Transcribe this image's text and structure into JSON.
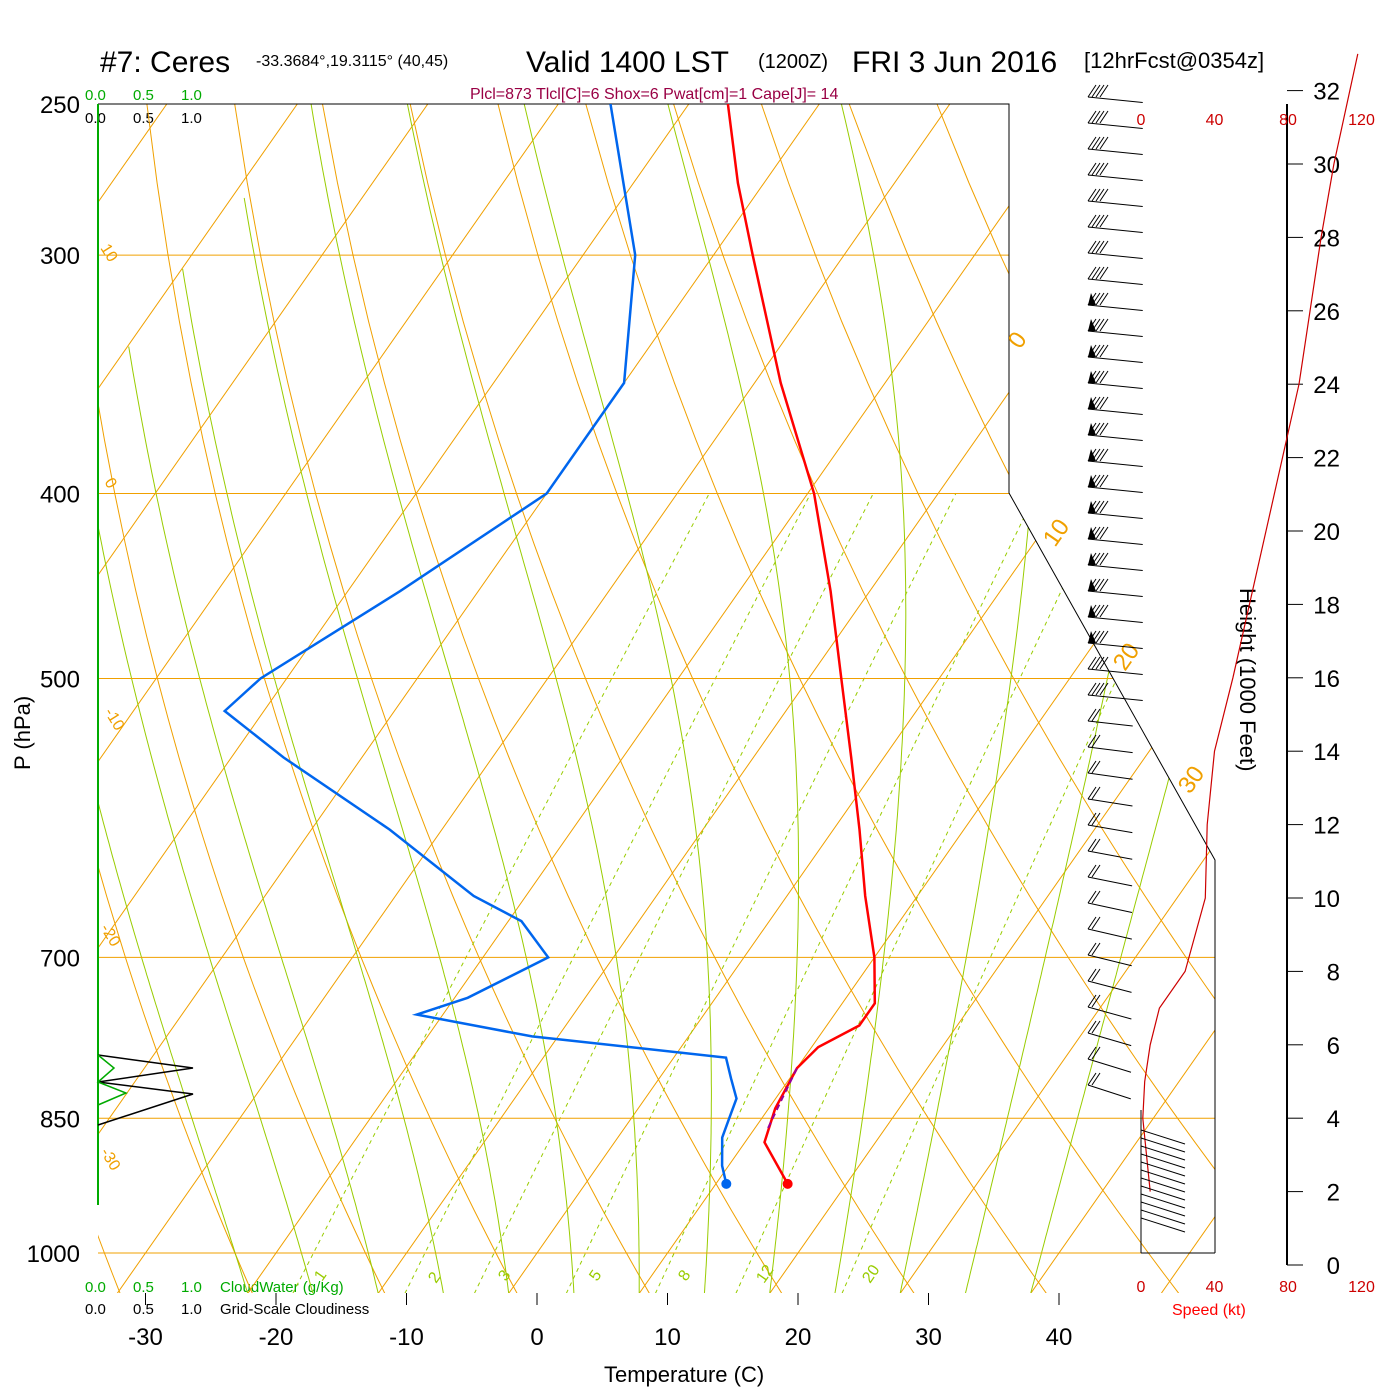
{
  "header": {
    "station": "#7: Ceres",
    "coords": "-33.3684°,19.3115° (40,45)",
    "valid": "Valid 1400 LST",
    "utc": "(1200Z)",
    "date": "FRI 3 Jun 2016",
    "forecast": "[12hrFcst@0354z]",
    "indices": "Plcl=873 Tlcl[C]=6 Shox=6 Pwat[cm]=1 Cape[J]= 14"
  },
  "colors": {
    "temperature": "#ff0000",
    "dewpoint": "#0066ee",
    "isotherm_isobar": "#f0a000",
    "adiabat": "#99cc00",
    "cloud_water": "#00aa00",
    "wind_speed": "#cc0000",
    "indices_text": "#990044"
  },
  "chart_data": {
    "type": "skew-t",
    "xlabel": "Temperature (C)",
    "ylabel": "P (hPa)",
    "right_axis_label": "Height (1000 Feet)",
    "x_ticks": [
      "-30",
      "-20",
      "-10",
      "0",
      "10",
      "20",
      "30",
      "40"
    ],
    "pressure_ticks": [
      "250",
      "300",
      "400",
      "500",
      "700",
      "850",
      "1000"
    ],
    "pressure_levels": [
      250,
      300,
      400,
      500,
      700,
      850,
      1000
    ],
    "height_ticks": [
      "0",
      "2",
      "4",
      "6",
      "8",
      "10",
      "12",
      "14",
      "16",
      "18",
      "20",
      "22",
      "24",
      "26",
      "28",
      "30",
      "32"
    ],
    "height_values": [
      0,
      2,
      4,
      6,
      8,
      10,
      12,
      14,
      16,
      18,
      20,
      22,
      24,
      26,
      28,
      30,
      32
    ],
    "isotherm_label_values": [
      "10",
      "0",
      "-10",
      "-20",
      "-30"
    ],
    "isotherm_right_labels": [
      "0",
      "10",
      "20",
      "30"
    ],
    "mixing_ratio_labels": [
      "1",
      "2",
      "3",
      "5",
      "8",
      "12",
      "20"
    ],
    "cloud_scale_top": [
      "0.0",
      "0.5",
      "1.0"
    ],
    "cloud_scale_bottom": [
      "0.0",
      "0.5",
      "1.0"
    ],
    "cloud_water_label": "CloudWater (g/Kg)",
    "cloudiness_label": "Grid-Scale Cloudiness",
    "speed_ticks": [
      "0",
      "40",
      "80",
      "120"
    ],
    "speed_label": "Speed (kt)",
    "temperature": [
      {
        "p": 920,
        "t": 15.5
      },
      {
        "p": 875,
        "t": 11.5
      },
      {
        "p": 840,
        "t": 10.5
      },
      {
        "p": 800,
        "t": 10.0
      },
      {
        "p": 780,
        "t": 10.5
      },
      {
        "p": 760,
        "t": 12.5
      },
      {
        "p": 740,
        "t": 12.5
      },
      {
        "p": 700,
        "t": 10.0
      },
      {
        "p": 650,
        "t": 6.0
      },
      {
        "p": 600,
        "t": 2.0
      },
      {
        "p": 550,
        "t": -2.5
      },
      {
        "p": 500,
        "t": -7.5
      },
      {
        "p": 450,
        "t": -13.0
      },
      {
        "p": 400,
        "t": -19.5
      },
      {
        "p": 350,
        "t": -28.0
      },
      {
        "p": 300,
        "t": -37.0
      },
      {
        "p": 275,
        "t": -42.0
      },
      {
        "p": 250,
        "t": -47.0
      }
    ],
    "dewpoint": [
      {
        "p": 920,
        "t": 10.8
      },
      {
        "p": 900,
        "t": 9.5
      },
      {
        "p": 870,
        "t": 8.0
      },
      {
        "p": 850,
        "t": 7.5
      },
      {
        "p": 830,
        "t": 7.0
      },
      {
        "p": 810,
        "t": 5.5
      },
      {
        "p": 790,
        "t": 4.0
      },
      {
        "p": 770,
        "t": -12.0
      },
      {
        "p": 750,
        "t": -22.0
      },
      {
        "p": 735,
        "t": -19.0
      },
      {
        "p": 700,
        "t": -15.0
      },
      {
        "p": 670,
        "t": -19.0
      },
      {
        "p": 650,
        "t": -24.0
      },
      {
        "p": 600,
        "t": -34.0
      },
      {
        "p": 550,
        "t": -46.0
      },
      {
        "p": 520,
        "t": -53.0
      },
      {
        "p": 500,
        "t": -52.0
      },
      {
        "p": 450,
        "t": -46.0
      },
      {
        "p": 400,
        "t": -40.0
      },
      {
        "p": 350,
        "t": -40.0
      },
      {
        "p": 300,
        "t": -46.0
      },
      {
        "p": 250,
        "t": -56.0
      }
    ],
    "parcel": [
      {
        "p": 860,
        "t": 11.0
      },
      {
        "p": 830,
        "t": 10.5
      },
      {
        "p": 800,
        "t": 10.0
      }
    ],
    "wind_speed_profile": [
      {
        "h": 2,
        "kt": 5
      },
      {
        "h": 3,
        "kt": 3
      },
      {
        "h": 4,
        "kt": 1
      },
      {
        "h": 5,
        "kt": 2
      },
      {
        "h": 6,
        "kt": 5
      },
      {
        "h": 7,
        "kt": 10
      },
      {
        "h": 8,
        "kt": 24
      },
      {
        "h": 10,
        "kt": 35
      },
      {
        "h": 12,
        "kt": 36
      },
      {
        "h": 14,
        "kt": 40
      },
      {
        "h": 16,
        "kt": 50
      },
      {
        "h": 20,
        "kt": 68
      },
      {
        "h": 24,
        "kt": 86
      },
      {
        "h": 28,
        "kt": 98
      },
      {
        "h": 30,
        "kt": 105
      },
      {
        "h": 33,
        "kt": 118
      }
    ]
  }
}
